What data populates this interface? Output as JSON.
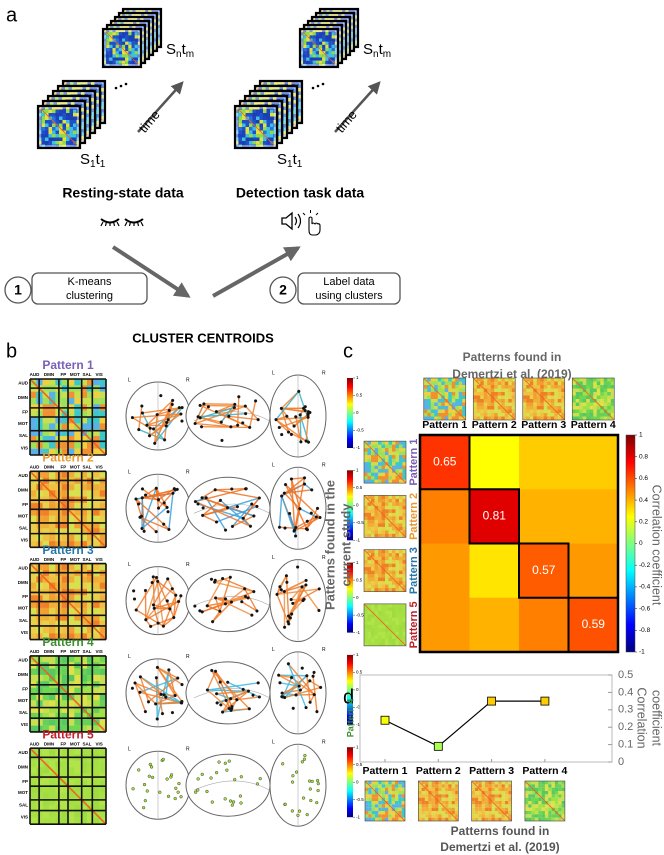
{
  "panel_a": {
    "letter": "a",
    "rest": {
      "top": [
        "S",
        "n",
        "t",
        "m"
      ],
      "bottom": [
        "S",
        "1",
        "t",
        "1"
      ],
      "time": "time",
      "title": "Resting-state data"
    },
    "task": {
      "top": [
        "S",
        "n",
        "t",
        "m"
      ],
      "bottom": [
        "S",
        "1",
        "t",
        "1"
      ],
      "time": "time",
      "title": "Detection task data"
    },
    "steps": [
      {
        "number": 1,
        "text": [
          "K-means",
          "clustering"
        ]
      },
      {
        "number": 2,
        "text": [
          "Label data",
          "using clusters"
        ]
      }
    ]
  },
  "panel_b": {
    "letter": "b",
    "title": "CLUSTER CENTROIDS",
    "patterns": [
      {
        "name": "Pattern 1",
        "color": "#7b5fb4"
      },
      {
        "name": "Pattern 2",
        "color": "#e89a2c"
      },
      {
        "name": "Pattern 3",
        "color": "#2577a8"
      },
      {
        "name": "Pattern 4",
        "color": "#3b8f2e"
      },
      {
        "name": "Pattern 5",
        "color": "#c0202a"
      }
    ],
    "matrix_labels": [
      "AUD",
      "DMN",
      "FP",
      "MOT",
      "SAL",
      "VIS"
    ],
    "hemisphere_labels": [
      "L",
      "R"
    ],
    "colorbar_lim": [
      -1,
      1
    ],
    "colorbar_ticks": [
      1,
      0.5,
      0,
      -0.5,
      -1
    ]
  },
  "chart_data": [
    {
      "type": "heatmap",
      "letter": "c",
      "title": [
        "Patterns found in",
        "Demertzi et al. (2019)"
      ],
      "x_categories": [
        "Pattern 1",
        "Pattern 2",
        "Pattern 3",
        "Pattern 4"
      ],
      "y_categories": [
        "Pattern 1",
        "Pattern 2",
        "Pattern 3",
        "Pattern 5"
      ],
      "y_category_colors": [
        "#7b5fb4",
        "#e89a2c",
        "#2577a8",
        "#c0202a"
      ],
      "ylabel": [
        "Patterns found in the",
        "current study"
      ],
      "values": [
        [
          0.65,
          0.25,
          0.35,
          0.35
        ],
        [
          0.5,
          0.81,
          0.4,
          0.4
        ],
        [
          0.45,
          0.3,
          0.57,
          0.45
        ],
        [
          0.45,
          0.4,
          0.5,
          0.59
        ]
      ],
      "value_labels": [
        [
          "0.65",
          null,
          null,
          null
        ],
        [
          null,
          "0.81",
          null,
          null
        ],
        [
          null,
          null,
          "0.57",
          null
        ],
        [
          null,
          null,
          null,
          "0.59"
        ]
      ],
      "colormap": "jet",
      "clim": [
        -1,
        1
      ],
      "colorbar_ticks": [
        1,
        0.8,
        0.6,
        0.4,
        0.2,
        0,
        -0.2,
        -0.4,
        -0.6,
        -0.8,
        -1
      ],
      "colorbar_label": "Correlation coefficient"
    },
    {
      "type": "line",
      "letter": "d",
      "categories": [
        "Pattern 1",
        "Pattern 2",
        "Pattern 3",
        "Pattern 4"
      ],
      "series": [
        {
          "name": "Pattern 4",
          "name_color": "#3b8f2e",
          "color": "#000000",
          "values": [
            0.24,
            0.09,
            0.35,
            0.35
          ]
        }
      ],
      "marker_colormap": "jet",
      "marker_clim": [
        -1,
        1
      ],
      "ylim": [
        0,
        0.5
      ],
      "yticks": [
        0,
        0.1,
        0.2,
        0.3,
        0.4,
        0.5
      ],
      "ylabel": [
        "Correlation",
        "coefficient"
      ],
      "xlabel": [
        "Patterns found in",
        "Demertzi et al. (2019)"
      ]
    }
  ]
}
